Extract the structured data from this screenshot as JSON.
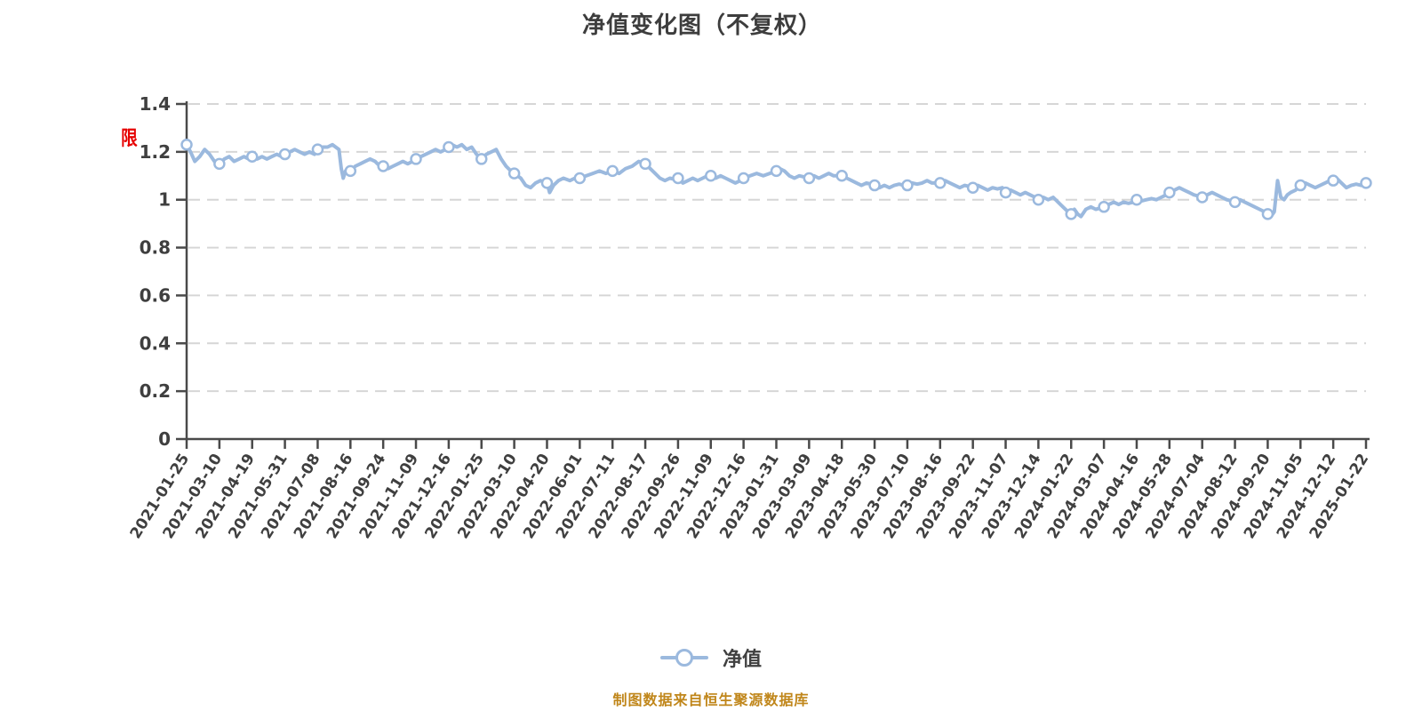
{
  "title": "净值变化图（不复权）",
  "annotations": {
    "restriction_badge": "限"
  },
  "legend": {
    "items": [
      {
        "label": "净值",
        "marker": "circle-on-line"
      }
    ]
  },
  "footer": {
    "source_note": "制图数据来自恒生聚源数据库"
  },
  "colors": {
    "line": "#9bb9de",
    "marker_fill": "#ffffff",
    "grid": "#d6d6d6",
    "axis": "#4a4a4a",
    "title_text": "#3d3d3d",
    "tick_text": "#3f3f3f",
    "legend_text": "#404040",
    "badge_red": "#e60000",
    "footer_orange": "#c0861a"
  },
  "chart_data": {
    "type": "line",
    "title": "净值变化图（不复权）",
    "xlabel": "",
    "ylabel": "",
    "ylim": [
      0,
      1.4
    ],
    "y_ticks": [
      0,
      0.2,
      0.4,
      0.6,
      0.8,
      1.0,
      1.2,
      1.4
    ],
    "y_tick_labels": [
      "0",
      "0.2",
      "0.4",
      "0.6",
      "0.8",
      "1",
      "1.2",
      "1.4"
    ],
    "grid": "horizontal-dashed",
    "legend_position": "bottom-center",
    "marker": "circle",
    "x_labels": [
      "2021-01-25",
      "2021-03-10",
      "2021-04-19",
      "2021-05-31",
      "2021-07-08",
      "2021-08-16",
      "2021-09-24",
      "2021-11-09",
      "2021-12-16",
      "2022-01-25",
      "2022-03-10",
      "2022-04-20",
      "2022-06-01",
      "2022-07-11",
      "2022-08-17",
      "2022-09-26",
      "2022-11-09",
      "2022-12-16",
      "2023-01-31",
      "2023-03-09",
      "2023-04-18",
      "2023-05-30",
      "2023-07-10",
      "2023-08-16",
      "2023-09-22",
      "2023-11-07",
      "2023-12-14",
      "2024-01-22",
      "2024-03-07",
      "2024-04-16",
      "2024-05-28",
      "2024-07-04",
      "2024-08-12",
      "2024-09-20",
      "2024-11-05",
      "2024-12-12",
      "2025-01-22"
    ],
    "series": [
      {
        "name": "净值",
        "values_at_labels": [
          1.23,
          1.15,
          1.18,
          1.19,
          1.21,
          1.12,
          1.14,
          1.17,
          1.22,
          1.17,
          1.11,
          1.07,
          1.09,
          1.12,
          1.15,
          1.09,
          1.1,
          1.09,
          1.12,
          1.09,
          1.1,
          1.06,
          1.06,
          1.07,
          1.05,
          1.03,
          1.0,
          0.94,
          0.97,
          1.0,
          1.03,
          1.01,
          0.99,
          0.94,
          1.06,
          1.08,
          1.07
        ]
      }
    ],
    "line_path_points": [
      [
        0,
        1.23
      ],
      [
        0.12,
        1.2
      ],
      [
        0.25,
        1.16
      ],
      [
        0.4,
        1.18
      ],
      [
        0.55,
        1.21
      ],
      [
        0.7,
        1.19
      ],
      [
        0.85,
        1.16
      ],
      [
        1,
        1.15
      ],
      [
        1.15,
        1.17
      ],
      [
        1.3,
        1.18
      ],
      [
        1.45,
        1.16
      ],
      [
        1.6,
        1.17
      ],
      [
        1.75,
        1.18
      ],
      [
        1.9,
        1.17
      ],
      [
        2,
        1.18
      ],
      [
        2.15,
        1.17
      ],
      [
        2.3,
        1.18
      ],
      [
        2.45,
        1.17
      ],
      [
        2.6,
        1.18
      ],
      [
        2.75,
        1.19
      ],
      [
        2.9,
        1.18
      ],
      [
        3,
        1.19
      ],
      [
        3.15,
        1.2
      ],
      [
        3.3,
        1.21
      ],
      [
        3.45,
        1.2
      ],
      [
        3.6,
        1.19
      ],
      [
        3.75,
        1.2
      ],
      [
        3.9,
        1.19
      ],
      [
        4,
        1.21
      ],
      [
        4.15,
        1.22
      ],
      [
        4.3,
        1.22
      ],
      [
        4.45,
        1.23
      ],
      [
        4.55,
        1.22
      ],
      [
        4.65,
        1.21
      ],
      [
        4.72,
        1.13
      ],
      [
        4.78,
        1.09
      ],
      [
        4.85,
        1.12
      ],
      [
        4.92,
        1.11
      ],
      [
        5,
        1.12
      ],
      [
        5.15,
        1.14
      ],
      [
        5.3,
        1.15
      ],
      [
        5.45,
        1.16
      ],
      [
        5.6,
        1.17
      ],
      [
        5.75,
        1.16
      ],
      [
        5.9,
        1.14
      ],
      [
        6,
        1.14
      ],
      [
        6.15,
        1.13
      ],
      [
        6.3,
        1.14
      ],
      [
        6.45,
        1.15
      ],
      [
        6.6,
        1.16
      ],
      [
        6.75,
        1.15
      ],
      [
        6.9,
        1.16
      ],
      [
        7,
        1.17
      ],
      [
        7.15,
        1.18
      ],
      [
        7.3,
        1.19
      ],
      [
        7.45,
        1.2
      ],
      [
        7.6,
        1.21
      ],
      [
        7.75,
        1.2
      ],
      [
        7.9,
        1.21
      ],
      [
        8,
        1.22
      ],
      [
        8.1,
        1.23
      ],
      [
        8.25,
        1.22
      ],
      [
        8.4,
        1.23
      ],
      [
        8.55,
        1.21
      ],
      [
        8.7,
        1.22
      ],
      [
        8.85,
        1.19
      ],
      [
        9,
        1.17
      ],
      [
        9.15,
        1.19
      ],
      [
        9.3,
        1.2
      ],
      [
        9.45,
        1.21
      ],
      [
        9.6,
        1.17
      ],
      [
        9.75,
        1.14
      ],
      [
        9.9,
        1.12
      ],
      [
        10,
        1.11
      ],
      [
        10.2,
        1.09
      ],
      [
        10.35,
        1.06
      ],
      [
        10.5,
        1.05
      ],
      [
        10.65,
        1.07
      ],
      [
        10.8,
        1.08
      ],
      [
        11,
        1.07
      ],
      [
        11.08,
        1.03
      ],
      [
        11.2,
        1.06
      ],
      [
        11.35,
        1.08
      ],
      [
        11.5,
        1.09
      ],
      [
        11.7,
        1.08
      ],
      [
        11.85,
        1.09
      ],
      [
        12,
        1.09
      ],
      [
        12.2,
        1.1
      ],
      [
        12.4,
        1.11
      ],
      [
        12.6,
        1.12
      ],
      [
        12.8,
        1.11
      ],
      [
        13,
        1.12
      ],
      [
        13.2,
        1.11
      ],
      [
        13.4,
        1.13
      ],
      [
        13.6,
        1.14
      ],
      [
        13.8,
        1.16
      ],
      [
        13.9,
        1.155
      ],
      [
        14,
        1.15
      ],
      [
        14.15,
        1.13
      ],
      [
        14.3,
        1.11
      ],
      [
        14.45,
        1.09
      ],
      [
        14.6,
        1.08
      ],
      [
        14.75,
        1.09
      ],
      [
        14.9,
        1.085
      ],
      [
        15,
        1.09
      ],
      [
        15.15,
        1.07
      ],
      [
        15.3,
        1.08
      ],
      [
        15.45,
        1.09
      ],
      [
        15.6,
        1.08
      ],
      [
        15.75,
        1.09
      ],
      [
        15.9,
        1.1
      ],
      [
        16,
        1.1
      ],
      [
        16.15,
        1.09
      ],
      [
        16.3,
        1.1
      ],
      [
        16.45,
        1.09
      ],
      [
        16.6,
        1.08
      ],
      [
        16.75,
        1.07
      ],
      [
        16.9,
        1.08
      ],
      [
        17,
        1.09
      ],
      [
        17.2,
        1.1
      ],
      [
        17.4,
        1.11
      ],
      [
        17.6,
        1.1
      ],
      [
        17.8,
        1.11
      ],
      [
        18,
        1.12
      ],
      [
        18.1,
        1.13
      ],
      [
        18.25,
        1.12
      ],
      [
        18.4,
        1.1
      ],
      [
        18.55,
        1.09
      ],
      [
        18.7,
        1.1
      ],
      [
        18.85,
        1.095
      ],
      [
        19,
        1.09
      ],
      [
        19.15,
        1.1
      ],
      [
        19.3,
        1.09
      ],
      [
        19.45,
        1.1
      ],
      [
        19.6,
        1.11
      ],
      [
        19.75,
        1.1
      ],
      [
        19.9,
        1.1
      ],
      [
        20,
        1.1
      ],
      [
        20.15,
        1.09
      ],
      [
        20.3,
        1.08
      ],
      [
        20.45,
        1.07
      ],
      [
        20.6,
        1.06
      ],
      [
        20.75,
        1.07
      ],
      [
        20.9,
        1.065
      ],
      [
        21,
        1.06
      ],
      [
        21.15,
        1.05
      ],
      [
        21.3,
        1.06
      ],
      [
        21.45,
        1.05
      ],
      [
        21.6,
        1.06
      ],
      [
        21.75,
        1.065
      ],
      [
        21.9,
        1.06
      ],
      [
        22,
        1.06
      ],
      [
        22.15,
        1.07
      ],
      [
        22.3,
        1.065
      ],
      [
        22.45,
        1.07
      ],
      [
        22.6,
        1.08
      ],
      [
        22.75,
        1.07
      ],
      [
        22.9,
        1.07
      ],
      [
        23,
        1.07
      ],
      [
        23.15,
        1.08
      ],
      [
        23.3,
        1.07
      ],
      [
        23.45,
        1.06
      ],
      [
        23.6,
        1.05
      ],
      [
        23.75,
        1.06
      ],
      [
        23.9,
        1.055
      ],
      [
        24,
        1.05
      ],
      [
        24.15,
        1.06
      ],
      [
        24.3,
        1.05
      ],
      [
        24.45,
        1.04
      ],
      [
        24.6,
        1.05
      ],
      [
        24.75,
        1.045
      ],
      [
        24.9,
        1.05
      ],
      [
        25,
        1.03
      ],
      [
        25.15,
        1.04
      ],
      [
        25.3,
        1.03
      ],
      [
        25.45,
        1.02
      ],
      [
        25.6,
        1.03
      ],
      [
        25.75,
        1.02
      ],
      [
        25.9,
        1.01
      ],
      [
        26,
        1
      ],
      [
        26.15,
        1.01
      ],
      [
        26.3,
        1
      ],
      [
        26.45,
        1.01
      ],
      [
        26.6,
        0.99
      ],
      [
        26.75,
        0.97
      ],
      [
        26.9,
        0.95
      ],
      [
        27,
        0.94
      ],
      [
        27.1,
        0.96
      ],
      [
        27.2,
        0.94
      ],
      [
        27.3,
        0.93
      ],
      [
        27.45,
        0.96
      ],
      [
        27.6,
        0.97
      ],
      [
        27.75,
        0.96
      ],
      [
        27.9,
        0.965
      ],
      [
        28,
        0.97
      ],
      [
        28.15,
        0.98
      ],
      [
        28.3,
        0.99
      ],
      [
        28.45,
        0.98
      ],
      [
        28.6,
        0.99
      ],
      [
        28.75,
        0.985
      ],
      [
        28.9,
        0.99
      ],
      [
        29,
        1
      ],
      [
        29.15,
        0.995
      ],
      [
        29.3,
        1
      ],
      [
        29.45,
        1.005
      ],
      [
        29.6,
        1
      ],
      [
        29.75,
        1.01
      ],
      [
        29.9,
        1.02
      ],
      [
        30,
        1.03
      ],
      [
        30.15,
        1.04
      ],
      [
        30.3,
        1.05
      ],
      [
        30.45,
        1.04
      ],
      [
        30.6,
        1.03
      ],
      [
        30.75,
        1.02
      ],
      [
        30.9,
        1.015
      ],
      [
        31,
        1.01
      ],
      [
        31.15,
        1.02
      ],
      [
        31.3,
        1.03
      ],
      [
        31.45,
        1.02
      ],
      [
        31.6,
        1.01
      ],
      [
        31.75,
        1
      ],
      [
        31.9,
        0.995
      ],
      [
        32,
        0.99
      ],
      [
        32.15,
        1
      ],
      [
        32.3,
        0.99
      ],
      [
        32.45,
        0.98
      ],
      [
        32.6,
        0.97
      ],
      [
        32.75,
        0.96
      ],
      [
        32.9,
        0.95
      ],
      [
        33,
        0.94
      ],
      [
        33.1,
        0.93
      ],
      [
        33.2,
        0.95
      ],
      [
        33.3,
        1.08
      ],
      [
        33.4,
        1.01
      ],
      [
        33.5,
        1
      ],
      [
        33.6,
        1.02
      ],
      [
        33.7,
        1.03
      ],
      [
        33.85,
        1.04
      ],
      [
        34,
        1.06
      ],
      [
        34.15,
        1.07
      ],
      [
        34.3,
        1.06
      ],
      [
        34.45,
        1.05
      ],
      [
        34.6,
        1.06
      ],
      [
        34.75,
        1.07
      ],
      [
        34.9,
        1.08
      ],
      [
        35,
        1.08
      ],
      [
        35.1,
        1.09
      ],
      [
        35.25,
        1.07
      ],
      [
        35.4,
        1.05
      ],
      [
        35.55,
        1.06
      ],
      [
        35.7,
        1.065
      ],
      [
        35.85,
        1.06
      ],
      [
        36,
        1.07
      ]
    ]
  }
}
